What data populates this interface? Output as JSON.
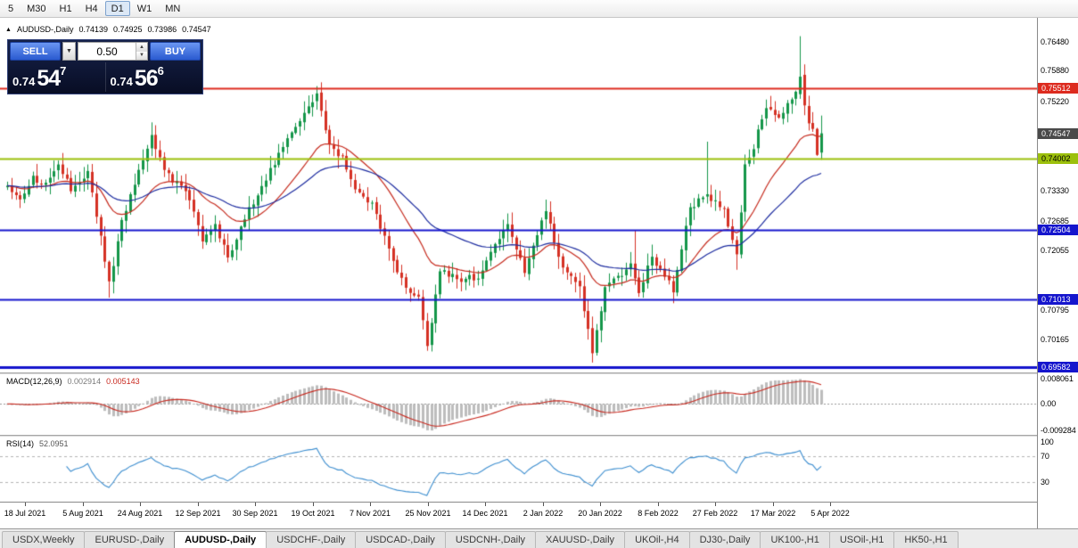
{
  "toolbar": {
    "items": [
      {
        "label": "5",
        "active": false
      },
      {
        "label": "M30",
        "active": false
      },
      {
        "label": "H1",
        "active": false
      },
      {
        "label": "H4",
        "active": false
      },
      {
        "label": "D1",
        "active": true
      },
      {
        "label": "W1",
        "active": false
      },
      {
        "label": "MN",
        "active": false
      }
    ]
  },
  "chart": {
    "icon": "▲",
    "symbol_label": "AUDUSD-,Daily",
    "ohlc": {
      "open": "0.74139",
      "high": "0.74925",
      "low": "0.73986",
      "close": "0.74547"
    }
  },
  "trade_panel": {
    "sell_label": "SELL",
    "buy_label": "BUY",
    "volume": "0.50",
    "bid": {
      "prefix": "0.74",
      "big": "54",
      "sup": "7"
    },
    "ask": {
      "prefix": "0.74",
      "big": "56",
      "sup": "6"
    }
  },
  "chart_data": {
    "type": "candlestick",
    "symbol": "AUDUSD",
    "timeframe": "Daily",
    "ohlc_current": {
      "open": 0.74139,
      "high": 0.74925,
      "low": 0.73986,
      "close": 0.74547
    },
    "x_labels": [
      "18 Jul 2021",
      "5 Aug 2021",
      "24 Aug 2021",
      "12 Sep 2021",
      "30 Sep 2021",
      "19 Oct 2021",
      "7 Nov 2021",
      "25 Nov 2021",
      "14 Dec 2021",
      "2 Jan 2022",
      "20 Jan 2022",
      "8 Feb 2022",
      "27 Feb 2022",
      "17 Mar 2022",
      "5 Apr 2022"
    ],
    "price_range": {
      "min": 0.6947,
      "max": 0.77
    },
    "y_ticks": [
      "0.76480",
      "0.75880",
      "0.75220",
      "0.73330",
      "0.72685",
      "0.72055",
      "0.70795",
      "0.70165"
    ],
    "hlines": [
      {
        "value": 0.75512,
        "label": "0.75512",
        "color": "#dd2b1f",
        "label_fg": "#ffffff",
        "width": 2
      },
      {
        "value": 0.74002,
        "label": "0.74002",
        "color": "#9cc00c",
        "label_fg": "#000000",
        "width": 2
      },
      {
        "value": 0.72504,
        "label": "0.72504",
        "color": "#1515cd",
        "label_fg": "#ffffff",
        "width": 2
      },
      {
        "value": 0.71013,
        "label": "0.71013",
        "color": "#1515cd",
        "label_fg": "#ffffff",
        "width": 2
      },
      {
        "value": 0.69582,
        "label": "0.69582",
        "color": "#1515cd",
        "label_fg": "#ffffff",
        "width": 3
      }
    ],
    "current_price": {
      "value": 0.74547,
      "label": "0.74547",
      "bg": "#4a4a4a",
      "fg": "#ffffff"
    },
    "up_color": "#149649",
    "down_color": "#d53124",
    "moving_averages": [
      {
        "type": "ema",
        "period": 20,
        "color": "#c62b1e"
      },
      {
        "type": "ema",
        "period": 45,
        "color": "#1d2ca0"
      }
    ],
    "candles": {
      "count": 193,
      "seed": 1337,
      "anchors": [
        [
          0,
          0.734
        ],
        [
          3,
          0.7312
        ],
        [
          6,
          0.7358
        ],
        [
          9,
          0.7345
        ],
        [
          12,
          0.7388
        ],
        [
          15,
          0.7336
        ],
        [
          19,
          0.7368
        ],
        [
          22,
          0.724
        ],
        [
          24,
          0.7135
        ],
        [
          27,
          0.7268
        ],
        [
          31,
          0.7372
        ],
        [
          34,
          0.7452
        ],
        [
          37,
          0.7372
        ],
        [
          42,
          0.7332
        ],
        [
          46,
          0.7232
        ],
        [
          49,
          0.7262
        ],
        [
          52,
          0.7188
        ],
        [
          57,
          0.7292
        ],
        [
          62,
          0.7378
        ],
        [
          68,
          0.7468
        ],
        [
          73,
          0.7535
        ],
        [
          76,
          0.7432
        ],
        [
          79,
          0.7402
        ],
        [
          82,
          0.7332
        ],
        [
          86,
          0.7302
        ],
        [
          89,
          0.7232
        ],
        [
          94,
          0.7122
        ],
        [
          97,
          0.7108
        ],
        [
          99,
          0.7005
        ],
        [
          102,
          0.7165
        ],
        [
          107,
          0.7142
        ],
        [
          111,
          0.7152
        ],
        [
          118,
          0.7262
        ],
        [
          122,
          0.7162
        ],
        [
          127,
          0.7292
        ],
        [
          130,
          0.7188
        ],
        [
          135,
          0.7128
        ],
        [
          138,
          0.6992
        ],
        [
          141,
          0.7128
        ],
        [
          147,
          0.7172
        ],
        [
          149,
          0.7118
        ],
        [
          152,
          0.7192
        ],
        [
          157,
          0.7122
        ],
        [
          161,
          0.7298
        ],
        [
          165,
          0.7325
        ],
        [
          169,
          0.7288
        ],
        [
          172,
          0.7196
        ],
        [
          174,
          0.7382
        ],
        [
          176,
          0.7428
        ],
        [
          179,
          0.7512
        ],
        [
          181,
          0.749
        ],
        [
          182,
          0.7482
        ],
        [
          184,
          0.752
        ],
        [
          186,
          0.7545
        ],
        [
          187,
          0.7575
        ],
        [
          188,
          0.7512
        ],
        [
          189,
          0.7478
        ],
        [
          190,
          0.7462
        ],
        [
          191,
          0.7414
        ],
        [
          192,
          0.74547
        ]
      ],
      "overrides": [
        {
          "i": 24,
          "l": 0.7106
        },
        {
          "i": 34,
          "h": 0.7478
        },
        {
          "i": 73,
          "h": 0.7555
        },
        {
          "i": 99,
          "l": 0.6993
        },
        {
          "i": 127,
          "h": 0.7314
        },
        {
          "i": 138,
          "l": 0.6968
        },
        {
          "i": 148,
          "h": 0.7249
        },
        {
          "i": 157,
          "l": 0.7094
        },
        {
          "i": 165,
          "h": 0.7437
        },
        {
          "i": 172,
          "l": 0.7165
        },
        {
          "i": 187,
          "o": 0.7538,
          "h": 0.7661,
          "l": 0.7528,
          "c": 0.7575
        },
        {
          "i": 192,
          "o": 0.74139,
          "h": 0.74925,
          "l": 0.73986,
          "c": 0.74547
        }
      ]
    },
    "macd": {
      "label": "MACD(12,26,9)",
      "value_main": "0.002914",
      "value_signal": "0.005143",
      "fast": 12,
      "slow": 26,
      "signal_period": 9,
      "scale_min": -0.0099,
      "scale_max": 0.0095,
      "ticks": [
        "0.008061",
        "0.00",
        "-0.009284"
      ],
      "hist_color": "#bdbdbd",
      "signal_color": "#c8281e"
    },
    "rsi": {
      "label": "RSI(14)",
      "value": "52.0951",
      "period": 14,
      "color": "#3e8fd0",
      "levels": [
        70,
        30
      ],
      "scale_ticks": [
        "100",
        "70",
        "30"
      ],
      "scale_min": 0,
      "scale_max": 100
    }
  },
  "tabbar": {
    "tabs": [
      {
        "label": "USDX,Weekly",
        "active": false
      },
      {
        "label": "EURUSD-,Daily",
        "active": false
      },
      {
        "label": "AUDUSD-,Daily",
        "active": true
      },
      {
        "label": "USDCHF-,Daily",
        "active": false
      },
      {
        "label": "USDCAD-,Daily",
        "active": false
      },
      {
        "label": "USDCNH-,Daily",
        "active": false
      },
      {
        "label": "XAUUSD-,Daily",
        "active": false
      },
      {
        "label": "UKOil-,H4",
        "active": false
      },
      {
        "label": "DJ30-,Daily",
        "active": false
      },
      {
        "label": "UK100-,H1",
        "active": false
      },
      {
        "label": "USOil-,H1",
        "active": false
      },
      {
        "label": "HK50-,H1",
        "active": false
      }
    ]
  }
}
